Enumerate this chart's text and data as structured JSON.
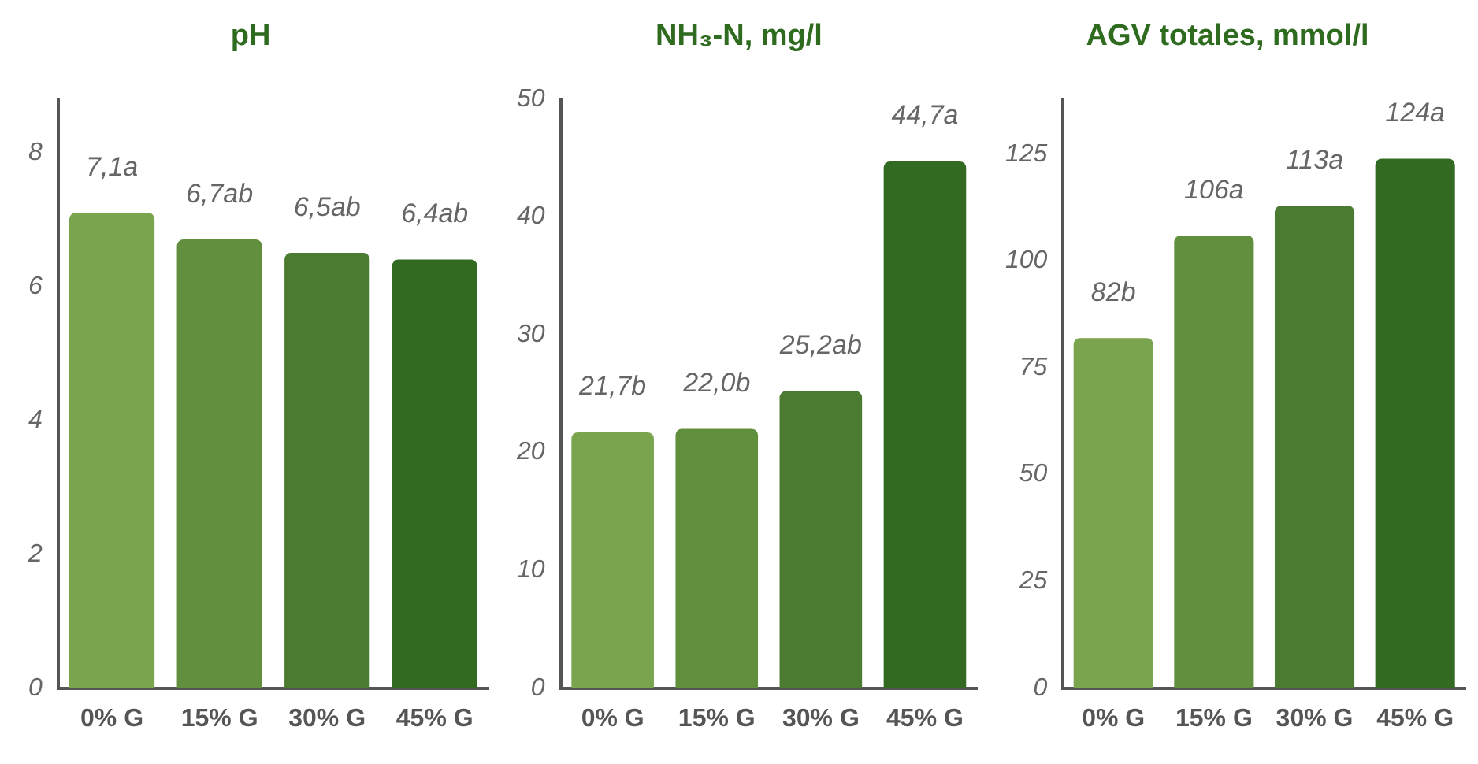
{
  "chart_data": [
    {
      "type": "bar",
      "title": "pH",
      "categories": [
        "0% G",
        "15% G",
        "30% G",
        "45% G"
      ],
      "values": [
        7.1,
        6.7,
        6.5,
        6.4
      ],
      "colors": [
        "#7ba44f",
        "#628f3e",
        "#4b7a31",
        "#326a22"
      ],
      "value_labels": [
        "7,1a",
        "6,7ab",
        "6,5ab",
        "6,4ab"
      ],
      "ylim": [
        0,
        8.8
      ],
      "yticks": [
        0,
        2,
        4,
        6,
        8
      ],
      "grid": false,
      "legend": false
    },
    {
      "type": "bar",
      "title": "NH₃-N, mg/l",
      "categories": [
        "0% G",
        "15% G",
        "30% G",
        "45% G"
      ],
      "values": [
        21.7,
        22.0,
        25.2,
        44.7
      ],
      "colors": [
        "#7ba44f",
        "#628f3e",
        "#4b7a31",
        "#326a22"
      ],
      "value_labels": [
        "21,7b",
        "22,0b",
        "25,2ab",
        "44,7a"
      ],
      "ylim": [
        0,
        50
      ],
      "yticks": [
        0,
        10,
        20,
        30,
        40,
        50
      ],
      "grid": false,
      "legend": false
    },
    {
      "type": "bar",
      "title": "AGV totales, mmol/l",
      "categories": [
        "0% G",
        "15% G",
        "30% G",
        "45% G"
      ],
      "values": [
        82,
        106,
        113,
        124
      ],
      "colors": [
        "#7ba44f",
        "#628f3e",
        "#4b7a31",
        "#326a22"
      ],
      "value_labels": [
        "82b",
        "106a",
        "113a",
        "124a"
      ],
      "ylim": [
        0,
        138
      ],
      "yticks": [
        0,
        25,
        50,
        75,
        100,
        125
      ],
      "grid": false,
      "legend": false
    }
  ]
}
